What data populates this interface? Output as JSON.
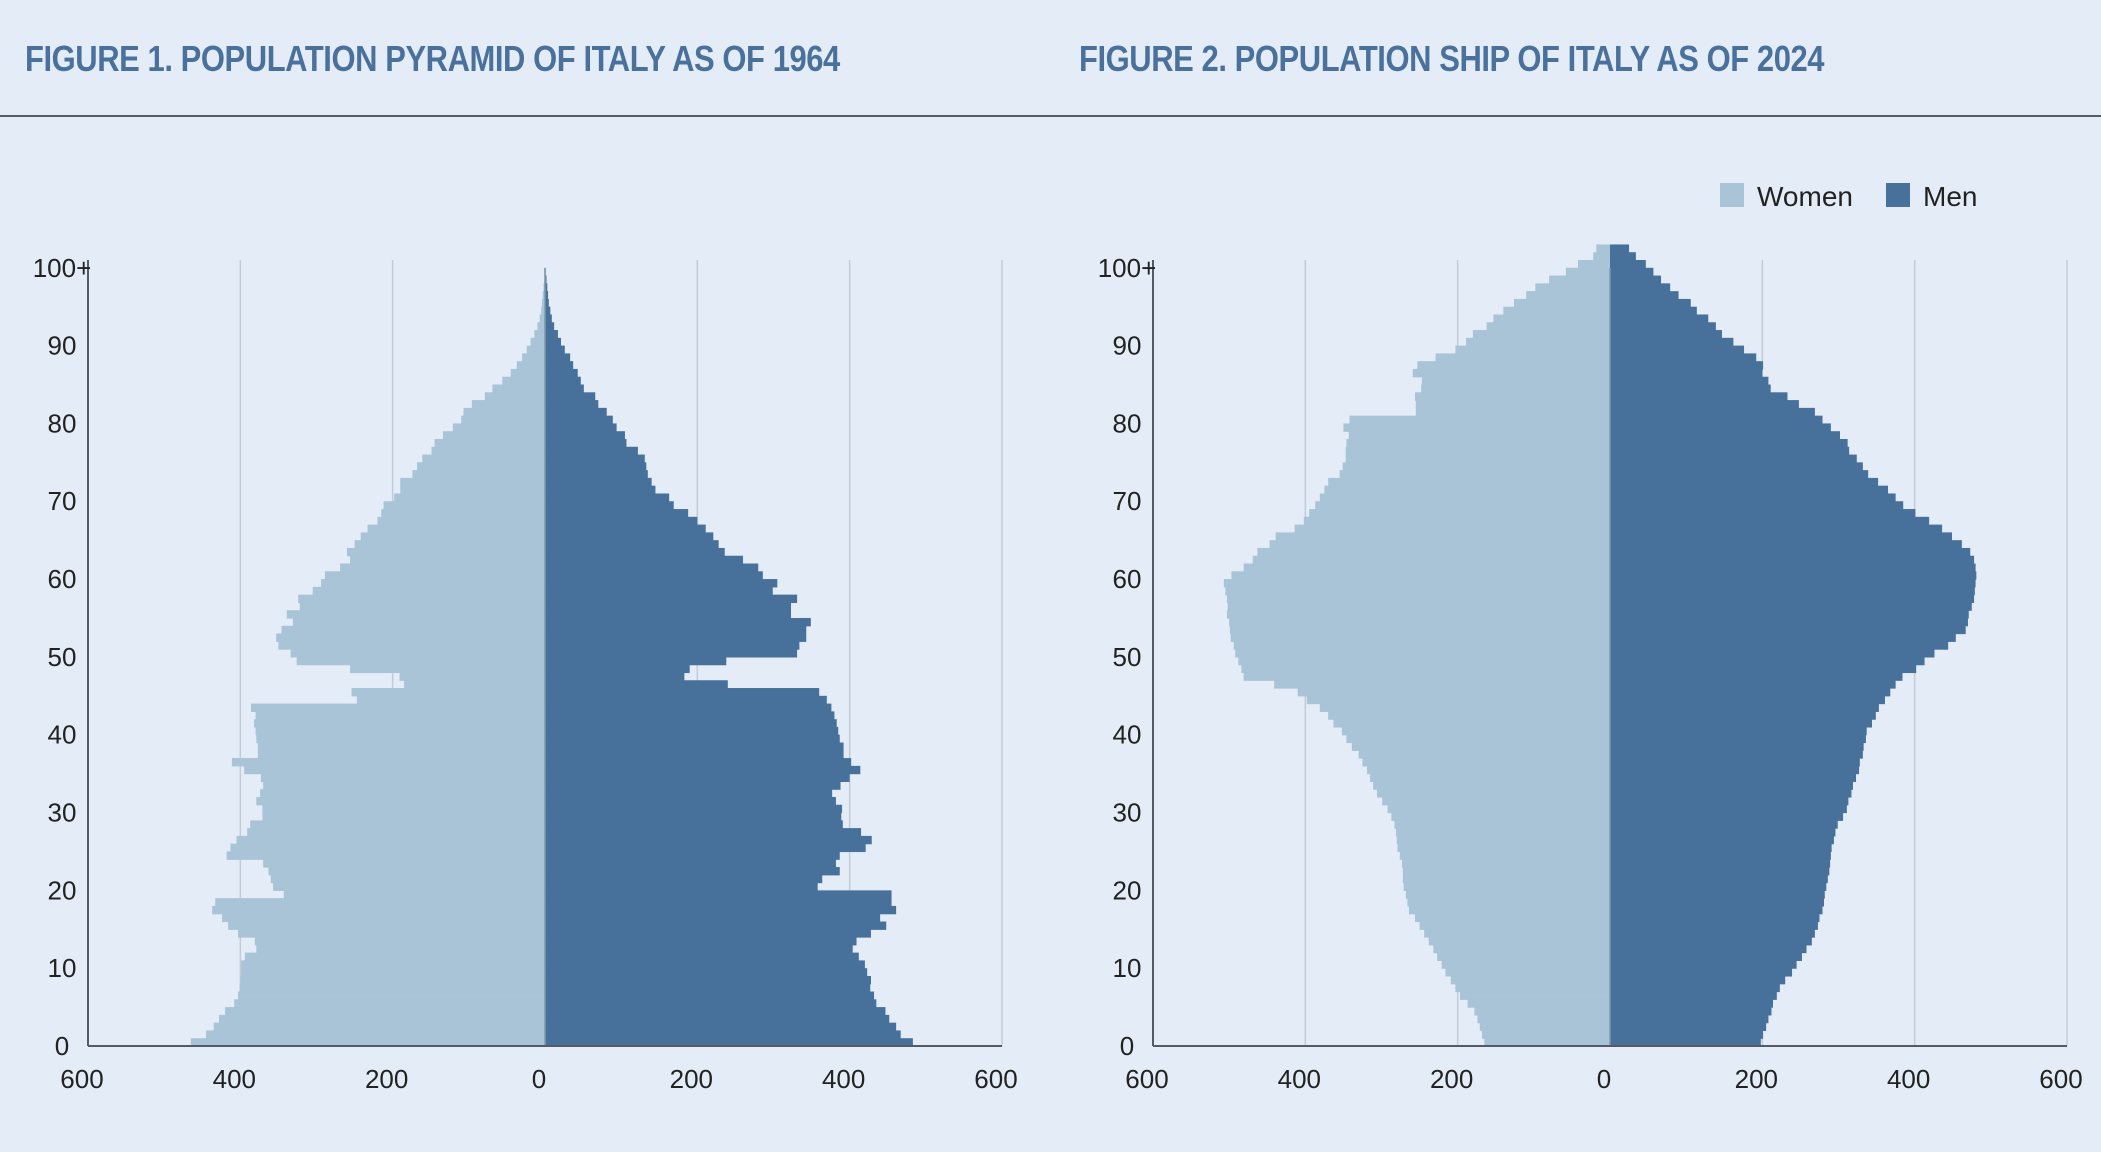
{
  "colors": {
    "women": "#a9c3d7",
    "men": "#47719b",
    "title": "#4a719c",
    "background": "#e4edf7",
    "grid": "#c3ccd6",
    "axis": "#555b66"
  },
  "legend": [
    {
      "label": "Women",
      "key": "women"
    },
    {
      "label": "Men",
      "key": "men"
    }
  ],
  "chart_data": [
    {
      "type": "bar",
      "orientation": "horizontal-pyramid",
      "title": "FIGURE 1. POPULATION PYRAMID OF ITALY AS OF 1964",
      "x_ticks": [
        "600",
        "400",
        "200",
        "0",
        "200",
        "400",
        "600"
      ],
      "y_ticks": [
        "0",
        "10",
        "20",
        "30",
        "40",
        "50",
        "60",
        "70",
        "80",
        "90",
        "100+"
      ],
      "xlim": [
        -600,
        600
      ],
      "ylim": [
        0,
        101
      ],
      "legend": "none",
      "series": [
        {
          "key": "women",
          "values": [
            465,
            445,
            435,
            428,
            420,
            408,
            403,
            401,
            400,
            399,
            399,
            394,
            379,
            381,
            403,
            416,
            424,
            437,
            433,
            343,
            357,
            360,
            363,
            370,
            418,
            413,
            405,
            391,
            387,
            371,
            371,
            379,
            374,
            370,
            373,
            395,
            411,
            377,
            377,
            379,
            380,
            382,
            380,
            386,
            247,
            254,
            185,
            191,
            256,
            326,
            334,
            350,
            353,
            346,
            331,
            339,
            322,
            324,
            305,
            294,
            289,
            269,
            256,
            260,
            250,
            242,
            233,
            220,
            215,
            212,
            198,
            190,
            190,
            174,
            168,
            161,
            149,
            145,
            134,
            121,
            110,
            107,
            96,
            79,
            69,
            56,
            45,
            37,
            30,
            24,
            19,
            14,
            10,
            7,
            5,
            4,
            3,
            2,
            1,
            1,
            0
          ]
        },
        {
          "key": "men",
          "values": [
            483,
            467,
            461,
            452,
            447,
            435,
            432,
            427,
            428,
            423,
            420,
            412,
            404,
            409,
            428,
            448,
            440,
            461,
            455,
            455,
            358,
            364,
            387,
            382,
            387,
            421,
            429,
            415,
            391,
            389,
            390,
            382,
            377,
            388,
            400,
            414,
            402,
            392,
            392,
            387,
            385,
            383,
            380,
            376,
            370,
            360,
            240,
            183,
            190,
            238,
            331,
            334,
            343,
            343,
            349,
            323,
            323,
            331,
            299,
            305,
            286,
            280,
            260,
            236,
            228,
            221,
            211,
            200,
            188,
            169,
            163,
            145,
            140,
            135,
            133,
            131,
            122,
            107,
            105,
            94,
            89,
            81,
            70,
            66,
            51,
            47,
            43,
            37,
            33,
            26,
            21,
            17,
            12,
            9,
            7,
            5,
            4,
            3,
            2,
            1,
            0
          ]
        }
      ]
    },
    {
      "type": "bar",
      "orientation": "horizontal-pyramid",
      "title": "FIGURE 2. POPULATION SHIP OF ITALY AS OF 2024",
      "x_ticks": [
        "600",
        "400",
        "200",
        "0",
        "200",
        "400",
        "600"
      ],
      "y_ticks": [
        "0",
        "10",
        "20",
        "30",
        "40",
        "50",
        "60",
        "70",
        "80",
        "90",
        "100+"
      ],
      "xlim": [
        -600,
        600
      ],
      "ylim": [
        0,
        101
      ],
      "legend": "top-right",
      "series": [
        {
          "key": "women",
          "values": [
            165,
            168,
            171,
            174,
            178,
            187,
            197,
            203,
            209,
            216,
            221,
            227,
            232,
            238,
            244,
            250,
            256,
            264,
            266,
            268,
            271,
            272,
            272,
            273,
            276,
            279,
            280,
            281,
            283,
            287,
            292,
            299,
            306,
            311,
            315,
            319,
            325,
            330,
            339,
            346,
            352,
            363,
            370,
            381,
            398,
            410,
            441,
            481,
            484,
            488,
            492,
            494,
            498,
            499,
            500,
            503,
            502,
            503,
            505,
            507,
            497,
            481,
            469,
            463,
            447,
            439,
            414,
            402,
            395,
            387,
            381,
            375,
            370,
            355,
            351,
            347,
            347,
            346,
            343,
            350,
            342,
            255,
            255,
            256,
            248,
            247,
            259,
            253,
            229,
            203,
            189,
            180,
            162,
            153,
            140,
            126,
            110,
            98,
            80,
            58,
            42,
            22,
            18
          ]
        },
        {
          "key": "men",
          "values": [
            198,
            201,
            205,
            208,
            212,
            214,
            219,
            223,
            230,
            239,
            245,
            252,
            258,
            265,
            269,
            273,
            275,
            279,
            281,
            282,
            284,
            286,
            288,
            289,
            290,
            291,
            294,
            296,
            299,
            306,
            311,
            313,
            317,
            319,
            323,
            327,
            328,
            332,
            333,
            336,
            337,
            344,
            349,
            353,
            361,
            368,
            375,
            384,
            402,
            413,
            426,
            444,
            454,
            467,
            470,
            471,
            475,
            478,
            479,
            480,
            481,
            480,
            478,
            473,
            462,
            449,
            436,
            419,
            401,
            385,
            375,
            365,
            352,
            339,
            332,
            324,
            314,
            312,
            302,
            290,
            279,
            269,
            248,
            233,
            211,
            208,
            200,
            201,
            192,
            176,
            162,
            147,
            139,
            129,
            114,
            106,
            90,
            79,
            67,
            57,
            47,
            34,
            25
          ]
        }
      ]
    }
  ]
}
